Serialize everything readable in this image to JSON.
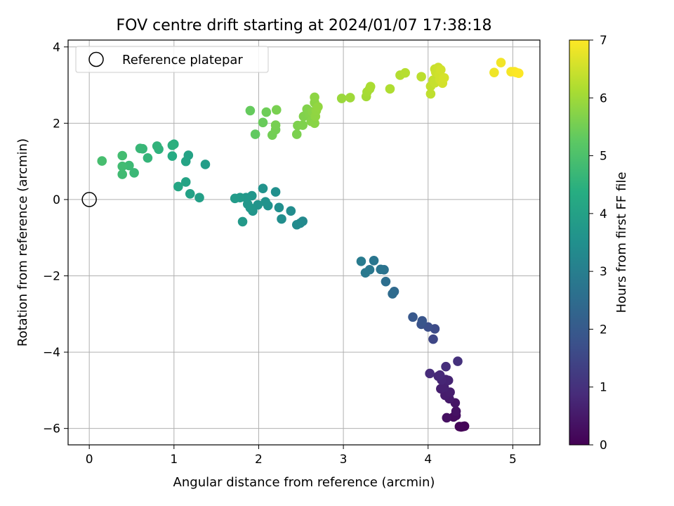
{
  "chart_data": {
    "type": "scatter",
    "title": "FOV centre drift starting at 2024/01/07 17:38:18",
    "xlabel": "Angular distance from reference (arcmin)",
    "ylabel": "Rotation from reference (arcmin)",
    "xlim": [
      -0.25,
      5.32
    ],
    "ylim": [
      -6.43,
      4.18
    ],
    "xticks": [
      0,
      1,
      2,
      3,
      4,
      5
    ],
    "yticks": [
      -6,
      -4,
      -2,
      0,
      2,
      4
    ],
    "xtick_labels": [
      "0",
      "1",
      "2",
      "3",
      "4",
      "5"
    ],
    "ytick_labels": [
      "−6",
      "−4",
      "−2",
      "0",
      "2",
      "4"
    ],
    "grid": true,
    "legend": {
      "placement": "top-left",
      "entries": [
        "Reference platepar"
      ]
    },
    "reference_point": {
      "x": 0,
      "y": 0
    },
    "colorbar": {
      "label": "Hours from first FF file",
      "colormap": "viridis",
      "range": [
        0,
        7
      ],
      "ticks": [
        0,
        1,
        2,
        3,
        4,
        5,
        6,
        7
      ],
      "tick_labels": [
        "0",
        "1",
        "2",
        "3",
        "4",
        "5",
        "6",
        "7"
      ]
    },
    "points": [
      {
        "x": 4.39,
        "y": -5.96,
        "c": 0.03
      },
      {
        "x": 4.41,
        "y": -5.95,
        "c": 0.05
      },
      {
        "x": 4.43,
        "y": -5.94,
        "c": 0.08
      },
      {
        "x": 4.37,
        "y": -5.95,
        "c": 0.1
      },
      {
        "x": 4.3,
        "y": -5.7,
        "c": 0.2
      },
      {
        "x": 4.33,
        "y": -5.66,
        "c": 0.25
      },
      {
        "x": 4.22,
        "y": -5.72,
        "c": 0.3
      },
      {
        "x": 4.33,
        "y": -5.55,
        "c": 0.35
      },
      {
        "x": 4.32,
        "y": -5.33,
        "c": 0.4
      },
      {
        "x": 4.25,
        "y": -5.22,
        "c": 0.5
      },
      {
        "x": 4.2,
        "y": -5.13,
        "c": 0.55
      },
      {
        "x": 4.26,
        "y": -5.05,
        "c": 0.58
      },
      {
        "x": 4.15,
        "y": -4.96,
        "c": 0.62
      },
      {
        "x": 4.19,
        "y": -4.92,
        "c": 0.65
      },
      {
        "x": 4.21,
        "y": -4.72,
        "c": 0.7
      },
      {
        "x": 4.24,
        "y": -4.74,
        "c": 0.72
      },
      {
        "x": 4.16,
        "y": -4.73,
        "c": 0.75
      },
      {
        "x": 4.12,
        "y": -4.63,
        "c": 0.8
      },
      {
        "x": 4.14,
        "y": -4.6,
        "c": 0.82
      },
      {
        "x": 4.02,
        "y": -4.56,
        "c": 0.88
      },
      {
        "x": 4.21,
        "y": -4.38,
        "c": 0.92
      },
      {
        "x": 4.35,
        "y": -4.24,
        "c": 1.0
      },
      {
        "x": 4.06,
        "y": -3.66,
        "c": 1.5
      },
      {
        "x": 4.08,
        "y": -3.39,
        "c": 1.6
      },
      {
        "x": 4.0,
        "y": -3.34,
        "c": 1.7
      },
      {
        "x": 3.92,
        "y": -3.27,
        "c": 1.8
      },
      {
        "x": 3.93,
        "y": -3.18,
        "c": 1.85
      },
      {
        "x": 3.82,
        "y": -3.08,
        "c": 1.95
      },
      {
        "x": 3.6,
        "y": -2.41,
        "c": 2.4
      },
      {
        "x": 3.58,
        "y": -2.47,
        "c": 2.45
      },
      {
        "x": 3.5,
        "y": -2.15,
        "c": 2.55
      },
      {
        "x": 3.48,
        "y": -1.84,
        "c": 2.65
      },
      {
        "x": 3.44,
        "y": -1.83,
        "c": 2.7
      },
      {
        "x": 3.36,
        "y": -1.6,
        "c": 2.75
      },
      {
        "x": 3.31,
        "y": -1.84,
        "c": 2.8
      },
      {
        "x": 3.26,
        "y": -1.92,
        "c": 2.85
      },
      {
        "x": 3.21,
        "y": -1.62,
        "c": 2.9
      },
      {
        "x": 2.52,
        "y": -0.57,
        "c": 3.3
      },
      {
        "x": 2.49,
        "y": -0.62,
        "c": 3.32
      },
      {
        "x": 2.45,
        "y": -0.66,
        "c": 3.35
      },
      {
        "x": 2.38,
        "y": -0.3,
        "c": 3.4
      },
      {
        "x": 2.27,
        "y": -0.51,
        "c": 3.45
      },
      {
        "x": 2.24,
        "y": -0.21,
        "c": 3.48
      },
      {
        "x": 2.2,
        "y": 0.2,
        "c": 3.5
      },
      {
        "x": 2.11,
        "y": -0.16,
        "c": 3.55
      },
      {
        "x": 2.08,
        "y": -0.06,
        "c": 3.58
      },
      {
        "x": 2.05,
        "y": 0.29,
        "c": 3.6
      },
      {
        "x": 1.99,
        "y": -0.14,
        "c": 3.62
      },
      {
        "x": 1.93,
        "y": -0.3,
        "c": 3.65
      },
      {
        "x": 1.92,
        "y": 0.1,
        "c": 3.68
      },
      {
        "x": 1.9,
        "y": -0.22,
        "c": 3.7
      },
      {
        "x": 1.87,
        "y": -0.12,
        "c": 3.72
      },
      {
        "x": 1.85,
        "y": 0.05,
        "c": 3.75
      },
      {
        "x": 1.81,
        "y": -0.58,
        "c": 3.78
      },
      {
        "x": 1.78,
        "y": 0.05,
        "c": 3.8
      },
      {
        "x": 1.72,
        "y": 0.03,
        "c": 3.82
      },
      {
        "x": 1.37,
        "y": 0.92,
        "c": 3.9
      },
      {
        "x": 1.3,
        "y": 0.05,
        "c": 3.95
      },
      {
        "x": 1.19,
        "y": 0.15,
        "c": 4.0
      },
      {
        "x": 1.17,
        "y": 1.16,
        "c": 4.05
      },
      {
        "x": 1.14,
        "y": 0.46,
        "c": 4.08
      },
      {
        "x": 1.14,
        "y": 1.0,
        "c": 4.1
      },
      {
        "x": 1.05,
        "y": 0.34,
        "c": 4.15
      },
      {
        "x": 0.98,
        "y": 1.14,
        "c": 4.3
      },
      {
        "x": 1.0,
        "y": 1.45,
        "c": 4.4
      },
      {
        "x": 0.98,
        "y": 1.42,
        "c": 4.45
      },
      {
        "x": 0.82,
        "y": 1.32,
        "c": 4.5
      },
      {
        "x": 0.8,
        "y": 1.4,
        "c": 4.55
      },
      {
        "x": 0.69,
        "y": 1.09,
        "c": 4.6
      },
      {
        "x": 0.63,
        "y": 1.33,
        "c": 4.65
      },
      {
        "x": 0.6,
        "y": 1.34,
        "c": 4.68
      },
      {
        "x": 0.53,
        "y": 0.7,
        "c": 4.7
      },
      {
        "x": 0.47,
        "y": 0.89,
        "c": 4.75
      },
      {
        "x": 0.39,
        "y": 0.66,
        "c": 4.8
      },
      {
        "x": 0.39,
        "y": 0.87,
        "c": 4.82
      },
      {
        "x": 0.39,
        "y": 1.15,
        "c": 4.85
      },
      {
        "x": 0.15,
        "y": 1.01,
        "c": 4.9
      },
      {
        "x": 1.96,
        "y": 1.71,
        "c": 5.3
      },
      {
        "x": 1.9,
        "y": 2.33,
        "c": 5.35
      },
      {
        "x": 2.05,
        "y": 2.02,
        "c": 5.4
      },
      {
        "x": 2.09,
        "y": 2.29,
        "c": 5.45
      },
      {
        "x": 2.16,
        "y": 1.69,
        "c": 5.5
      },
      {
        "x": 2.2,
        "y": 1.83,
        "c": 5.52
      },
      {
        "x": 2.2,
        "y": 1.95,
        "c": 5.55
      },
      {
        "x": 2.21,
        "y": 2.35,
        "c": 5.58
      },
      {
        "x": 2.45,
        "y": 1.71,
        "c": 5.6
      },
      {
        "x": 2.46,
        "y": 1.94,
        "c": 5.62
      },
      {
        "x": 2.52,
        "y": 1.95,
        "c": 5.64
      },
      {
        "x": 2.53,
        "y": 2.18,
        "c": 5.66
      },
      {
        "x": 2.57,
        "y": 2.37,
        "c": 5.68
      },
      {
        "x": 2.6,
        "y": 2.25,
        "c": 5.7
      },
      {
        "x": 2.62,
        "y": 2.05,
        "c": 5.72
      },
      {
        "x": 2.63,
        "y": 2.3,
        "c": 5.74
      },
      {
        "x": 2.66,
        "y": 2.0,
        "c": 5.76
      },
      {
        "x": 2.66,
        "y": 2.54,
        "c": 5.78
      },
      {
        "x": 2.66,
        "y": 2.68,
        "c": 5.8
      },
      {
        "x": 2.67,
        "y": 2.18,
        "c": 5.82
      },
      {
        "x": 2.68,
        "y": 2.33,
        "c": 5.84
      },
      {
        "x": 2.7,
        "y": 2.43,
        "c": 5.86
      },
      {
        "x": 2.98,
        "y": 2.65,
        "c": 5.95
      },
      {
        "x": 3.08,
        "y": 2.67,
        "c": 6.0
      },
      {
        "x": 3.27,
        "y": 2.7,
        "c": 6.05
      },
      {
        "x": 3.28,
        "y": 2.82,
        "c": 6.08
      },
      {
        "x": 3.31,
        "y": 2.9,
        "c": 6.1
      },
      {
        "x": 3.32,
        "y": 2.96,
        "c": 6.12
      },
      {
        "x": 3.55,
        "y": 2.9,
        "c": 6.18
      },
      {
        "x": 3.67,
        "y": 3.26,
        "c": 6.22
      },
      {
        "x": 3.73,
        "y": 3.32,
        "c": 6.25
      },
      {
        "x": 3.92,
        "y": 3.22,
        "c": 6.3
      },
      {
        "x": 4.03,
        "y": 2.77,
        "c": 6.35
      },
      {
        "x": 4.03,
        "y": 2.97,
        "c": 6.38
      },
      {
        "x": 4.06,
        "y": 3.13,
        "c": 6.4
      },
      {
        "x": 4.08,
        "y": 3.06,
        "c": 6.42
      },
      {
        "x": 4.08,
        "y": 3.42,
        "c": 6.44
      },
      {
        "x": 4.09,
        "y": 3.34,
        "c": 6.46
      },
      {
        "x": 4.12,
        "y": 3.46,
        "c": 6.48
      },
      {
        "x": 4.13,
        "y": 3.27,
        "c": 6.5
      },
      {
        "x": 4.14,
        "y": 3.14,
        "c": 6.52
      },
      {
        "x": 4.15,
        "y": 3.4,
        "c": 6.54
      },
      {
        "x": 4.17,
        "y": 3.05,
        "c": 6.56
      },
      {
        "x": 4.19,
        "y": 3.19,
        "c": 6.58
      },
      {
        "x": 4.78,
        "y": 3.33,
        "c": 6.85
      },
      {
        "x": 4.86,
        "y": 3.59,
        "c": 6.88
      },
      {
        "x": 4.98,
        "y": 3.35,
        "c": 6.92
      },
      {
        "x": 5.02,
        "y": 3.35,
        "c": 6.95
      },
      {
        "x": 5.04,
        "y": 3.33,
        "c": 6.97
      },
      {
        "x": 5.07,
        "y": 3.31,
        "c": 6.99
      }
    ]
  }
}
